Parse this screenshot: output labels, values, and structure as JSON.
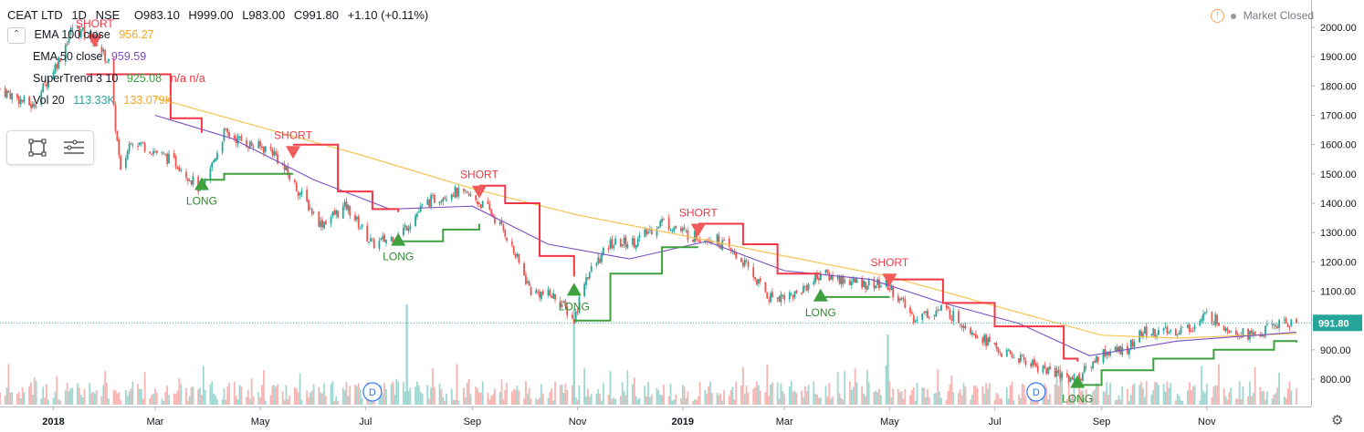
{
  "header": {
    "symbol": "CEAT LTD",
    "interval": "1D",
    "exchange": "NSE",
    "open": "O983.10",
    "high": "H999.00",
    "low": "L983.00",
    "close": "C991.80",
    "change": "+1.10 (+0.11%)"
  },
  "indicators": [
    {
      "name": "EMA 100 close",
      "value": "956.27",
      "color": "#f5a623"
    },
    {
      "name": "EMA 50 close",
      "value": "959.59",
      "color": "#7b4fbe"
    },
    {
      "name": "SuperTrend 3 10",
      "value": "925.08",
      "extra": "n/a n/a",
      "color": "#3ea13e",
      "extra_color": "#f23645"
    },
    {
      "name": "Vol 20",
      "value": "113.33K",
      "extra": "133.079K",
      "color": "#26a69a",
      "extra_color": "#f5a623"
    }
  ],
  "market_status": "Market Closed",
  "colors": {
    "up": "#26a69a",
    "down": "#ef5350",
    "ema100": "#f5c451",
    "ema50": "#7b4fbe",
    "st_up": "#3ea13e",
    "st_down": "#f23645",
    "last_price": "#26a69a"
  },
  "chart_data": {
    "type": "candlestick",
    "y_axis": {
      "min": 700,
      "max": 2050,
      "ticks": [
        "2000.00",
        "1900.00",
        "1800.00",
        "1700.00",
        "1600.00",
        "1500.00",
        "1400.00",
        "1300.00",
        "1200.00",
        "1100.00",
        "1000.00",
        "900.00",
        "800.00"
      ],
      "position": "right"
    },
    "x_axis": {
      "ticks": [
        "2018",
        "Mar",
        "May",
        "Jul",
        "Sep",
        "Nov",
        "2019",
        "Mar",
        "May",
        "Jul",
        "Sep",
        "Nov"
      ],
      "start": "2017-12-01",
      "end": "2019-12-23"
    },
    "last_price": {
      "label": "991.80",
      "value": 991.8
    },
    "price_path": [
      [
        "2017-12-01",
        1790
      ],
      [
        "2017-12-20",
        1730
      ],
      [
        "2018-01-05",
        1900
      ],
      [
        "2018-01-12",
        2000
      ],
      [
        "2018-01-25",
        1960
      ],
      [
        "2018-02-02",
        1880
      ],
      [
        "2018-02-09",
        1500
      ],
      [
        "2018-02-15",
        1620
      ],
      [
        "2018-02-28",
        1580
      ],
      [
        "2018-03-15",
        1530
      ],
      [
        "2018-03-28",
        1440
      ],
      [
        "2018-04-10",
        1640
      ],
      [
        "2018-04-25",
        1600
      ],
      [
        "2018-05-08",
        1580
      ],
      [
        "2018-05-20",
        1470
      ],
      [
        "2018-06-05",
        1330
      ],
      [
        "2018-06-20",
        1390
      ],
      [
        "2018-07-05",
        1260
      ],
      [
        "2018-07-20",
        1290
      ],
      [
        "2018-08-05",
        1400
      ],
      [
        "2018-08-20",
        1440
      ],
      [
        "2018-09-01",
        1420
      ],
      [
        "2018-09-10",
        1380
      ],
      [
        "2018-09-20",
        1300
      ],
      [
        "2018-10-05",
        1100
      ],
      [
        "2018-10-20",
        1080
      ],
      [
        "2018-10-30",
        1000
      ],
      [
        "2018-11-05",
        1140
      ],
      [
        "2018-11-20",
        1260
      ],
      [
        "2018-12-05",
        1270
      ],
      [
        "2018-12-20",
        1340
      ],
      [
        "2019-01-05",
        1290
      ],
      [
        "2019-01-20",
        1280
      ],
      [
        "2019-02-05",
        1200
      ],
      [
        "2019-02-20",
        1080
      ],
      [
        "2019-03-08",
        1090
      ],
      [
        "2019-03-22",
        1160
      ],
      [
        "2019-04-10",
        1130
      ],
      [
        "2019-04-30",
        1120
      ],
      [
        "2019-05-15",
        1010
      ],
      [
        "2019-06-01",
        1040
      ],
      [
        "2019-06-20",
        960
      ],
      [
        "2019-07-05",
        890
      ],
      [
        "2019-07-20",
        860
      ],
      [
        "2019-08-05",
        820
      ],
      [
        "2019-08-18",
        800
      ],
      [
        "2019-09-01",
        890
      ],
      [
        "2019-09-15",
        900
      ],
      [
        "2019-09-25",
        960
      ],
      [
        "2019-10-10",
        960
      ],
      [
        "2019-10-25",
        980
      ],
      [
        "2019-11-01",
        1020
      ],
      [
        "2019-11-15",
        970
      ],
      [
        "2019-11-30",
        945
      ],
      [
        "2019-12-10",
        985
      ],
      [
        "2019-12-23",
        992
      ]
    ],
    "ema100": [
      [
        "2018-03-01",
        1760
      ],
      [
        "2018-05-01",
        1660
      ],
      [
        "2018-07-01",
        1560
      ],
      [
        "2018-09-01",
        1450
      ],
      [
        "2018-11-01",
        1360
      ],
      [
        "2019-01-01",
        1290
      ],
      [
        "2019-03-01",
        1220
      ],
      [
        "2019-05-01",
        1150
      ],
      [
        "2019-07-01",
        1050
      ],
      [
        "2019-09-01",
        950
      ],
      [
        "2019-10-15",
        940
      ],
      [
        "2019-12-23",
        956
      ]
    ],
    "ema50": [
      [
        "2018-03-01",
        1700
      ],
      [
        "2018-04-15",
        1620
      ],
      [
        "2018-06-01",
        1480
      ],
      [
        "2018-07-15",
        1380
      ],
      [
        "2018-09-01",
        1390
      ],
      [
        "2018-10-15",
        1260
      ],
      [
        "2018-12-01",
        1210
      ],
      [
        "2019-01-15",
        1270
      ],
      [
        "2019-03-01",
        1170
      ],
      [
        "2019-04-20",
        1140
      ],
      [
        "2019-06-01",
        1060
      ],
      [
        "2019-07-15",
        990
      ],
      [
        "2019-08-25",
        880
      ],
      [
        "2019-10-15",
        930
      ],
      [
        "2019-12-23",
        960
      ]
    ],
    "supertrend": [
      {
        "dir": "short",
        "points": [
          [
            "2018-01-20",
            1840
          ],
          [
            "2018-02-15",
            1840
          ],
          [
            "2018-03-10",
            1690
          ],
          [
            "2018-03-28",
            1640
          ]
        ]
      },
      {
        "dir": "long",
        "points": [
          [
            "2018-03-28",
            1480
          ],
          [
            "2018-04-10",
            1500
          ],
          [
            "2018-05-20",
            1500
          ]
        ]
      },
      {
        "dir": "short",
        "points": [
          [
            "2018-05-20",
            1600
          ],
          [
            "2018-06-15",
            1440
          ],
          [
            "2018-07-05",
            1380
          ],
          [
            "2018-07-20",
            1370
          ]
        ]
      },
      {
        "dir": "long",
        "points": [
          [
            "2018-07-20",
            1270
          ],
          [
            "2018-08-15",
            1310
          ],
          [
            "2018-09-05",
            1330
          ]
        ]
      },
      {
        "dir": "short",
        "points": [
          [
            "2018-09-05",
            1460
          ],
          [
            "2018-09-20",
            1400
          ],
          [
            "2018-10-10",
            1220
          ],
          [
            "2018-10-30",
            1150
          ]
        ]
      },
      {
        "dir": "long",
        "points": [
          [
            "2018-10-30",
            1000
          ],
          [
            "2018-11-20",
            1160
          ],
          [
            "2018-12-20",
            1250
          ],
          [
            "2019-01-10",
            1250
          ]
        ]
      },
      {
        "dir": "short",
        "points": [
          [
            "2019-01-10",
            1330
          ],
          [
            "2019-02-05",
            1260
          ],
          [
            "2019-02-25",
            1160
          ],
          [
            "2019-03-22",
            1160
          ]
        ]
      },
      {
        "dir": "long",
        "points": [
          [
            "2019-03-22",
            1080
          ],
          [
            "2019-04-10",
            1080
          ],
          [
            "2019-05-01",
            1080
          ]
        ]
      },
      {
        "dir": "short",
        "points": [
          [
            "2019-05-01",
            1140
          ],
          [
            "2019-06-01",
            1060
          ],
          [
            "2019-07-01",
            980
          ],
          [
            "2019-08-10",
            870
          ],
          [
            "2019-08-18",
            860
          ]
        ]
      },
      {
        "dir": "long",
        "points": [
          [
            "2019-08-18",
            780
          ],
          [
            "2019-09-01",
            830
          ],
          [
            "2019-10-01",
            870
          ],
          [
            "2019-11-05",
            900
          ],
          [
            "2019-12-10",
            930
          ],
          [
            "2019-12-23",
            925
          ]
        ]
      }
    ],
    "signals": [
      {
        "label": "SHORT",
        "date": "2018-01-25",
        "price": 1975,
        "dir": "short"
      },
      {
        "label": "LONG",
        "date": "2018-03-28",
        "price": 1445,
        "dir": "long"
      },
      {
        "label": "SHORT",
        "date": "2018-05-20",
        "price": 1595,
        "dir": "short"
      },
      {
        "label": "LONG",
        "date": "2018-07-20",
        "price": 1255,
        "dir": "long"
      },
      {
        "label": "SHORT",
        "date": "2018-09-05",
        "price": 1460,
        "dir": "short"
      },
      {
        "label": "LONG",
        "date": "2018-10-30",
        "price": 1085,
        "dir": "long"
      },
      {
        "label": "SHORT",
        "date": "2019-01-10",
        "price": 1330,
        "dir": "short"
      },
      {
        "label": "LONG",
        "date": "2019-03-22",
        "price": 1065,
        "dir": "long"
      },
      {
        "label": "SHORT",
        "date": "2019-05-01",
        "price": 1160,
        "dir": "short"
      },
      {
        "label": "LONG",
        "date": "2019-08-18",
        "price": 770,
        "dir": "long"
      }
    ],
    "dividend_markers": [
      {
        "label": "D",
        "date": "2018-07-05"
      },
      {
        "label": "D",
        "date": "2019-07-25"
      }
    ],
    "volume_spikes": [
      {
        "date": "2018-07-25",
        "value": 1.0
      },
      {
        "date": "2018-10-30",
        "value": 0.95
      },
      {
        "date": "2019-04-30",
        "value": 0.7
      }
    ],
    "grid": false,
    "legend": "top-left"
  }
}
